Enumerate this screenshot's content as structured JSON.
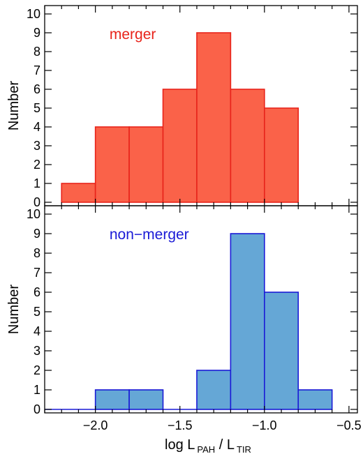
{
  "chart_data": [
    {
      "type": "bar",
      "histogram": true,
      "panel_label": "merger",
      "panel_label_color": "#e8231a",
      "fill_color": "#fa6249",
      "edge_color": "#e8231a",
      "bin_edges": [
        -2.2,
        -2.0,
        -1.8,
        -1.6,
        -1.4,
        -1.2,
        -1.0,
        -0.8
      ],
      "values": [
        1,
        4,
        4,
        6,
        9,
        6,
        5
      ],
      "ylabel": "Number",
      "xlim": [
        -2.3,
        -0.45
      ],
      "ylim": [
        0,
        10
      ],
      "yticks": [
        "0",
        "1",
        "2",
        "3",
        "4",
        "5",
        "6",
        "7",
        "8",
        "9",
        "10"
      ]
    },
    {
      "type": "bar",
      "histogram": true,
      "panel_label": "non−merger",
      "panel_label_color": "#1a1ad6",
      "fill_color": "#65a7d6",
      "edge_color": "#1a1ad6",
      "bin_edges": [
        -2.3,
        -2.2,
        -2.0,
        -1.8,
        -1.6,
        -1.4,
        -1.2,
        -1.0,
        -0.8,
        -0.6
      ],
      "values": [
        0,
        0,
        1,
        1,
        0,
        2,
        9,
        6,
        1
      ],
      "ylabel": "Number",
      "xlabel_parts": [
        "log L",
        "PAH",
        " / L",
        "TIR"
      ],
      "xlim": [
        -2.3,
        -0.45
      ],
      "ylim": [
        0,
        10
      ],
      "xticks": [
        "−2.0",
        "−1.5",
        "−1.0",
        "−0.5"
      ],
      "xtick_values": [
        -2.0,
        -1.5,
        -1.0,
        -0.5
      ],
      "yticks": [
        "0",
        "1",
        "2",
        "3",
        "4",
        "5",
        "6",
        "7",
        "8",
        "9",
        "10"
      ]
    }
  ]
}
